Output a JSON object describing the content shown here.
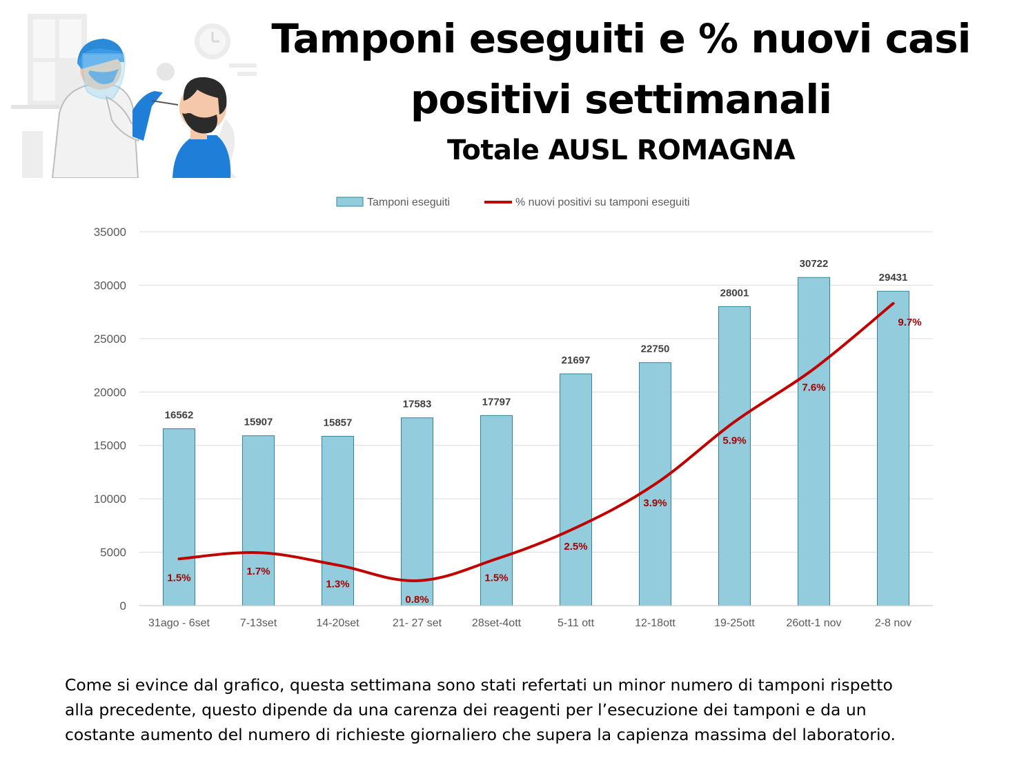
{
  "header": {
    "title_line1": "Tamponi eseguiti e % nuovi casi",
    "title_line2": "positivi settimanali",
    "subtitle": "Totale AUSL ROMAGNA"
  },
  "illustration": {
    "icon": "swab-test-illustration"
  },
  "chart_data": {
    "type": "bar",
    "categories": [
      "31ago - 6set",
      "7-13set",
      "14-20set",
      "21- 27 set",
      "28set-4ott",
      "5-11 ott",
      "12-18ott",
      "19-25ott",
      "26ott-1 nov",
      "2-8 nov"
    ],
    "series": [
      {
        "name": "Tamponi eseguiti",
        "type": "bar",
        "values": [
          16562,
          15907,
          15857,
          17583,
          17797,
          21697,
          22750,
          28001,
          30722,
          29431
        ],
        "labels": [
          "16562",
          "15907",
          "15857",
          "17583",
          "17797",
          "21697",
          "22750",
          "28001",
          "30722",
          "29431"
        ],
        "color": "#93CDDD",
        "border_color": "#31849B"
      },
      {
        "name": "% nuovi positivi su tamponi eseguiti",
        "type": "line",
        "values": [
          1.5,
          1.7,
          1.3,
          0.8,
          1.5,
          2.5,
          3.9,
          5.9,
          7.6,
          9.7
        ],
        "labels": [
          "1.5%",
          "1.7%",
          "1.3%",
          "0.8%",
          "1.5%",
          "2.5%",
          "3.9%",
          "5.9%",
          "7.6%",
          "9.7%"
        ],
        "color": "#C00000"
      }
    ],
    "y_ticks": [
      "0",
      "5000",
      "10000",
      "15000",
      "20000",
      "25000",
      "30000",
      "35000"
    ],
    "ylim": [
      0,
      35000
    ],
    "y2lim": [
      0,
      12
    ],
    "grid": true,
    "legend": "top-center"
  },
  "caption": {
    "line1": "Come si evince dal grafico, questa settimana sono stati refertati un minor numero di tamponi rispetto",
    "line2": "alla precedente, questo dipende da una carenza dei reagenti per l’esecuzione dei tamponi e da un",
    "line3": "costante aumento del numero di  richieste giornaliero che supera la capienza massima del laboratorio."
  }
}
